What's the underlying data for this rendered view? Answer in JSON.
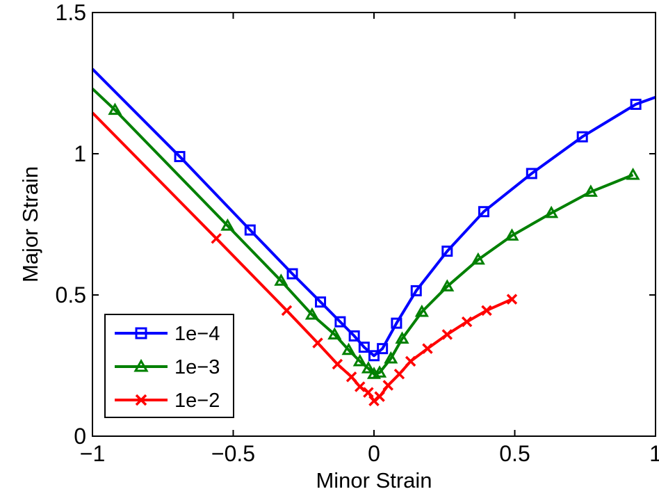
{
  "chart_data": {
    "type": "line",
    "title": "",
    "xlabel": "Minor Strain",
    "ylabel": "Major Strain",
    "xlim": [
      -1,
      1
    ],
    "ylim": [
      0,
      1.5
    ],
    "xticks": [
      -1,
      -0.5,
      0,
      0.5,
      1
    ],
    "xtick_labels": [
      "−1",
      "−0.5",
      "0",
      "0.5",
      "1"
    ],
    "yticks": [
      0,
      0.5,
      1,
      1.5
    ],
    "ytick_labels": [
      "0",
      "0.5",
      "1",
      "1.5"
    ],
    "grid": false,
    "legend_position": "bottom-left",
    "series": [
      {
        "name": "1e−4",
        "color": "#0000ff",
        "marker": "square",
        "line_x": [
          -1.0,
          -0.69,
          -0.44,
          -0.29,
          -0.19,
          -0.12,
          -0.07,
          -0.035,
          0.0,
          0.03,
          0.08,
          0.15,
          0.26,
          0.39,
          0.56,
          0.74,
          0.93,
          1.0
        ],
        "line_y": [
          1.3,
          0.99,
          0.73,
          0.575,
          0.475,
          0.405,
          0.355,
          0.315,
          0.285,
          0.31,
          0.4,
          0.515,
          0.655,
          0.795,
          0.93,
          1.06,
          1.175,
          1.2
        ],
        "marker_x": [
          -0.69,
          -0.44,
          -0.29,
          -0.19,
          -0.12,
          -0.07,
          -0.035,
          0.0,
          0.03,
          0.08,
          0.15,
          0.26,
          0.39,
          0.56,
          0.74,
          0.93
        ],
        "marker_y": [
          0.99,
          0.73,
          0.575,
          0.475,
          0.405,
          0.355,
          0.315,
          0.285,
          0.31,
          0.4,
          0.515,
          0.655,
          0.795,
          0.93,
          1.06,
          1.175
        ]
      },
      {
        "name": "1e−3",
        "color": "#008000",
        "marker": "triangle",
        "line_x": [
          -1.0,
          -0.92,
          -0.52,
          -0.33,
          -0.22,
          -0.14,
          -0.09,
          -0.05,
          -0.02,
          0.0,
          0.02,
          0.06,
          0.1,
          0.17,
          0.26,
          0.37,
          0.49,
          0.63,
          0.77,
          0.92
        ],
        "line_y": [
          1.23,
          1.155,
          0.745,
          0.55,
          0.43,
          0.36,
          0.305,
          0.265,
          0.24,
          0.22,
          0.225,
          0.275,
          0.345,
          0.44,
          0.53,
          0.625,
          0.71,
          0.79,
          0.865,
          0.925
        ],
        "marker_x": [
          -0.92,
          -0.52,
          -0.33,
          -0.22,
          -0.14,
          -0.09,
          -0.05,
          -0.02,
          0.0,
          0.02,
          0.06,
          0.1,
          0.17,
          0.26,
          0.37,
          0.49,
          0.63,
          0.77,
          0.92
        ],
        "marker_y": [
          1.155,
          0.745,
          0.55,
          0.43,
          0.36,
          0.305,
          0.265,
          0.24,
          0.22,
          0.225,
          0.275,
          0.345,
          0.44,
          0.53,
          0.625,
          0.71,
          0.79,
          0.865,
          0.925
        ]
      },
      {
        "name": "1e−2",
        "color": "#ff0000",
        "marker": "x",
        "line_x": [
          -1.0,
          -0.56,
          -0.31,
          -0.2,
          -0.13,
          -0.08,
          -0.05,
          -0.02,
          0.0,
          0.02,
          0.05,
          0.09,
          0.13,
          0.19,
          0.26,
          0.33,
          0.4,
          0.49
        ],
        "line_y": [
          1.145,
          0.7,
          0.445,
          0.33,
          0.255,
          0.21,
          0.175,
          0.155,
          0.125,
          0.14,
          0.18,
          0.22,
          0.265,
          0.31,
          0.36,
          0.405,
          0.445,
          0.485
        ],
        "marker_x": [
          -0.56,
          -0.31,
          -0.2,
          -0.13,
          -0.08,
          -0.05,
          -0.02,
          0.0,
          0.02,
          0.05,
          0.09,
          0.13,
          0.19,
          0.26,
          0.33,
          0.4,
          0.49
        ],
        "marker_y": [
          0.7,
          0.445,
          0.33,
          0.255,
          0.21,
          0.175,
          0.155,
          0.125,
          0.14,
          0.18,
          0.22,
          0.265,
          0.31,
          0.36,
          0.405,
          0.445,
          0.485
        ]
      }
    ]
  }
}
